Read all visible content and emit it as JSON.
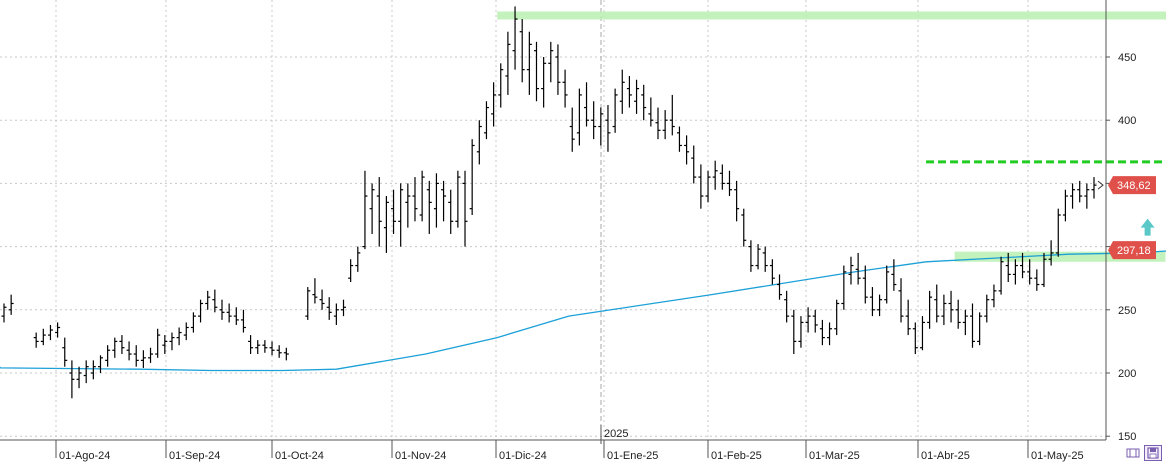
{
  "chart_data": {
    "type": "ohlc",
    "x_labels": [
      "01-Ago-24",
      "01-Sep-24",
      "01-Oct-24",
      "01-Nov-24",
      "01-Dic-24",
      "01-Ene-25",
      "01-Feb-25",
      "01-Mar-25",
      "01-Abr-25",
      "01-May-25"
    ],
    "year_marker": "2025",
    "y_ticks": [
      150,
      200,
      250,
      300,
      350,
      400,
      450
    ],
    "y_tick_labels": [
      "150",
      "200",
      "250",
      "",
      "",
      "400",
      "450"
    ],
    "ylim": [
      145,
      495
    ],
    "x_range_days": [
      0,
      310
    ],
    "last_price_label": "348,62",
    "last_price_value": 348.62,
    "ma_label": "297,18",
    "ma_value": 297.18,
    "colors": {
      "bars": "#000000",
      "moving_average": "#1ba0d8",
      "zone": "#b8f0b0",
      "resistance_dash": "#22cc22",
      "arrow": "#5bc8c8",
      "price_badge": "#e0504a"
    },
    "resistance_dashed_level": 367,
    "zones": [
      {
        "name": "top-zone",
        "x_start": 80,
        "x_end": 271,
        "y_low": 480,
        "y_high": 486
      },
      {
        "name": "support-zone",
        "x_start": 208,
        "x_end": 267,
        "y_low": 288,
        "y_high": 296
      }
    ],
    "resistance_line": {
      "x_start": 200,
      "x_end": 272
    },
    "arrow": {
      "x": 262,
      "y": 315,
      "direction": "up"
    },
    "moving_average": [
      [
        -120,
        205
      ],
      [
        -60,
        204
      ],
      [
        -20,
        203
      ],
      [
        0,
        202
      ],
      [
        20,
        202
      ],
      [
        35,
        203
      ],
      [
        60,
        215
      ],
      [
        80,
        228
      ],
      [
        100,
        245
      ],
      [
        140,
        262
      ],
      [
        180,
        280
      ],
      [
        200,
        288
      ],
      [
        220,
        291
      ],
      [
        240,
        294
      ],
      [
        260,
        295
      ],
      [
        270,
        297.18
      ]
    ],
    "ohlc": [
      [
        -58,
        245,
        255,
        240,
        252
      ],
      [
        -56,
        250,
        262,
        246,
        255
      ],
      [
        -49,
        228,
        232,
        220,
        225
      ],
      [
        -47,
        225,
        235,
        222,
        230
      ],
      [
        -45,
        230,
        238,
        226,
        234
      ],
      [
        -43,
        232,
        240,
        228,
        236
      ],
      [
        -41,
        220,
        228,
        205,
        210
      ],
      [
        -39,
        200,
        210,
        180,
        195
      ],
      [
        -37,
        195,
        205,
        188,
        200
      ],
      [
        -35,
        198,
        210,
        192,
        205
      ],
      [
        -33,
        200,
        210,
        195,
        205
      ],
      [
        -31,
        205,
        214,
        200,
        212
      ],
      [
        -29,
        210,
        222,
        205,
        218
      ],
      [
        -27,
        218,
        228,
        212,
        225
      ],
      [
        -25,
        225,
        230,
        215,
        220
      ],
      [
        -23,
        218,
        225,
        210,
        215
      ],
      [
        -21,
        215,
        222,
        205,
        210
      ],
      [
        -19,
        210,
        218,
        204,
        212
      ],
      [
        -17,
        212,
        220,
        208,
        215
      ],
      [
        -15,
        215,
        235,
        212,
        230
      ],
      [
        -13,
        222,
        230,
        215,
        225
      ],
      [
        -11,
        225,
        232,
        218,
        228
      ],
      [
        -9,
        228,
        236,
        222,
        232
      ],
      [
        -7,
        230,
        240,
        226,
        236
      ],
      [
        -5,
        236,
        248,
        232,
        245
      ],
      [
        -3,
        245,
        258,
        240,
        255
      ],
      [
        -1,
        255,
        265,
        250,
        260
      ],
      [
        1,
        258,
        266,
        248,
        252
      ],
      [
        3,
        250,
        258,
        242,
        248
      ],
      [
        5,
        248,
        255,
        240,
        245
      ],
      [
        7,
        245,
        252,
        238,
        242
      ],
      [
        9,
        242,
        250,
        232,
        236
      ],
      [
        11,
        225,
        230,
        215,
        220
      ],
      [
        13,
        220,
        226,
        215,
        222
      ],
      [
        15,
        222,
        226,
        216,
        220
      ],
      [
        17,
        220,
        225,
        214,
        218
      ],
      [
        19,
        218,
        222,
        212,
        216
      ],
      [
        21,
        216,
        220,
        210,
        215
      ],
      [
        27,
        245,
        268,
        242,
        265
      ],
      [
        29,
        262,
        275,
        255,
        260
      ],
      [
        31,
        258,
        266,
        250,
        255
      ],
      [
        33,
        252,
        260,
        242,
        248
      ],
      [
        35,
        245,
        255,
        238,
        250
      ],
      [
        37,
        250,
        258,
        245,
        252
      ],
      [
        39,
        275,
        290,
        272,
        285
      ],
      [
        41,
        285,
        300,
        280,
        295
      ],
      [
        43,
        300,
        360,
        298,
        340
      ],
      [
        45,
        330,
        350,
        310,
        345
      ],
      [
        47,
        340,
        355,
        300,
        320
      ],
      [
        49,
        315,
        340,
        295,
        335
      ],
      [
        51,
        330,
        345,
        310,
        320
      ],
      [
        53,
        320,
        350,
        300,
        345
      ],
      [
        55,
        335,
        350,
        315,
        340
      ],
      [
        57,
        340,
        355,
        320,
        330
      ],
      [
        59,
        325,
        360,
        320,
        355
      ],
      [
        61,
        345,
        352,
        310,
        335
      ],
      [
        63,
        330,
        358,
        315,
        350
      ],
      [
        65,
        345,
        352,
        320,
        340
      ],
      [
        67,
        335,
        345,
        310,
        320
      ],
      [
        69,
        320,
        360,
        315,
        355
      ],
      [
        71,
        350,
        360,
        300,
        320
      ],
      [
        73,
        330,
        385,
        325,
        380
      ],
      [
        75,
        375,
        400,
        365,
        395
      ],
      [
        77,
        390,
        415,
        385,
        410
      ],
      [
        79,
        405,
        430,
        395,
        420
      ],
      [
        81,
        420,
        445,
        410,
        440
      ],
      [
        83,
        435,
        470,
        420,
        460
      ],
      [
        85,
        455,
        490,
        440,
        480
      ],
      [
        87,
        470,
        480,
        430,
        440
      ],
      [
        89,
        440,
        470,
        420,
        460
      ],
      [
        91,
        455,
        462,
        415,
        425
      ],
      [
        93,
        425,
        450,
        410,
        445
      ],
      [
        95,
        445,
        462,
        430,
        455
      ],
      [
        97,
        450,
        460,
        420,
        430
      ],
      [
        99,
        430,
        440,
        410,
        420
      ],
      [
        101,
        395,
        410,
        375,
        385
      ],
      [
        103,
        390,
        425,
        380,
        420
      ],
      [
        105,
        410,
        430,
        395,
        400
      ],
      [
        107,
        400,
        415,
        385,
        395
      ],
      [
        109,
        395,
        410,
        380,
        405
      ],
      [
        111,
        400,
        412,
        375,
        390
      ],
      [
        113,
        395,
        425,
        390,
        420
      ],
      [
        115,
        415,
        440,
        405,
        430
      ],
      [
        117,
        425,
        435,
        410,
        420
      ],
      [
        119,
        415,
        432,
        405,
        425
      ],
      [
        121,
        420,
        428,
        400,
        410
      ],
      [
        123,
        405,
        418,
        395,
        400
      ],
      [
        125,
        398,
        410,
        385,
        392
      ],
      [
        127,
        392,
        408,
        385,
        400
      ],
      [
        129,
        400,
        420,
        388,
        395
      ],
      [
        131,
        390,
        395,
        375,
        380
      ],
      [
        133,
        380,
        388,
        365,
        375
      ],
      [
        135,
        370,
        380,
        350,
        355
      ],
      [
        137,
        355,
        365,
        330,
        340
      ],
      [
        139,
        340,
        360,
        335,
        355
      ],
      [
        141,
        355,
        368,
        345,
        360
      ],
      [
        143,
        358,
        365,
        345,
        350
      ],
      [
        145,
        350,
        360,
        340,
        345
      ],
      [
        147,
        345,
        352,
        320,
        330
      ],
      [
        149,
        325,
        330,
        300,
        305
      ],
      [
        151,
        300,
        305,
        280,
        285
      ],
      [
        153,
        285,
        302,
        282,
        298
      ],
      [
        155,
        295,
        300,
        280,
        285
      ],
      [
        157,
        285,
        290,
        270,
        275
      ],
      [
        159,
        270,
        278,
        258,
        262
      ],
      [
        161,
        258,
        265,
        240,
        245
      ],
      [
        163,
        245,
        250,
        215,
        225
      ],
      [
        165,
        225,
        245,
        220,
        240
      ],
      [
        167,
        240,
        252,
        232,
        245
      ],
      [
        169,
        245,
        250,
        232,
        238
      ],
      [
        171,
        235,
        242,
        222,
        228
      ],
      [
        173,
        228,
        240,
        222,
        235
      ],
      [
        175,
        235,
        258,
        230,
        255
      ],
      [
        177,
        255,
        285,
        250,
        280
      ],
      [
        179,
        278,
        292,
        270,
        285
      ],
      [
        181,
        282,
        295,
        270,
        275
      ],
      [
        183,
        275,
        285,
        255,
        260
      ],
      [
        185,
        260,
        268,
        245,
        250
      ],
      [
        187,
        250,
        262,
        245,
        258
      ],
      [
        189,
        258,
        285,
        255,
        280
      ],
      [
        191,
        278,
        290,
        265,
        270
      ],
      [
        193,
        265,
        275,
        240,
        245
      ],
      [
        195,
        245,
        258,
        230,
        235
      ],
      [
        197,
        235,
        240,
        215,
        220
      ],
      [
        199,
        220,
        245,
        218,
        240
      ],
      [
        201,
        240,
        265,
        235,
        260
      ],
      [
        203,
        258,
        270,
        240,
        245
      ],
      [
        205,
        245,
        262,
        238,
        255
      ],
      [
        207,
        255,
        265,
        240,
        250
      ],
      [
        209,
        250,
        258,
        235,
        240
      ],
      [
        211,
        240,
        250,
        230,
        245
      ],
      [
        213,
        245,
        255,
        220,
        225
      ],
      [
        215,
        225,
        248,
        222,
        245
      ],
      [
        217,
        245,
        262,
        240,
        258
      ],
      [
        219,
        258,
        270,
        252,
        265
      ],
      [
        221,
        265,
        292,
        262,
        288
      ],
      [
        223,
        285,
        295,
        272,
        278
      ],
      [
        225,
        278,
        290,
        270,
        285
      ],
      [
        227,
        285,
        295,
        275,
        280
      ],
      [
        229,
        280,
        290,
        270,
        275
      ],
      [
        231,
        275,
        282,
        265,
        270
      ],
      [
        233,
        270,
        295,
        268,
        290
      ],
      [
        235,
        290,
        305,
        285,
        295
      ],
      [
        237,
        295,
        330,
        292,
        325
      ],
      [
        239,
        325,
        345,
        320,
        340
      ],
      [
        241,
        340,
        350,
        330,
        345
      ],
      [
        243,
        345,
        352,
        335,
        340
      ],
      [
        245,
        340,
        350,
        330,
        345
      ],
      [
        247,
        345,
        355,
        338,
        348.62
      ]
    ]
  }
}
